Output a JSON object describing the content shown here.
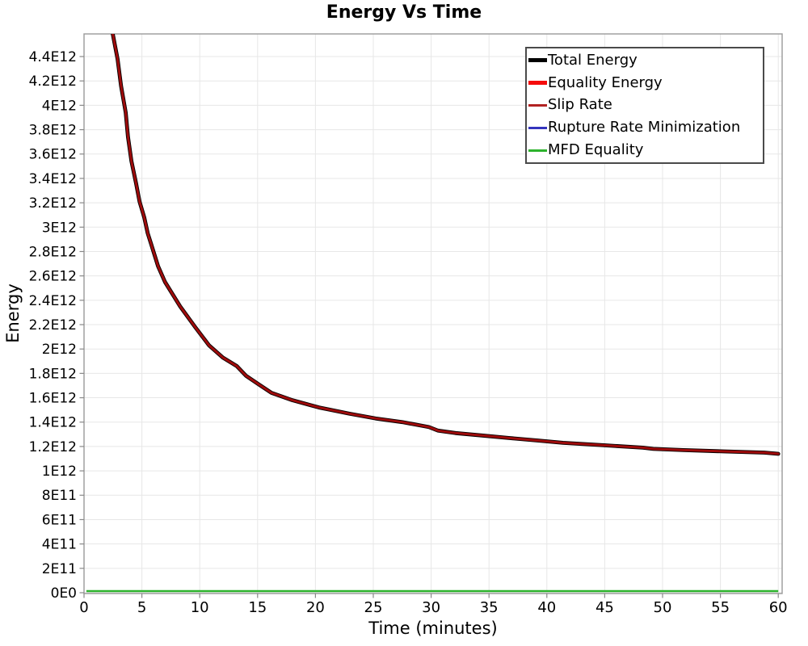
{
  "page": {
    "title": "Energy Vs Time"
  },
  "axes": {
    "x_label": "Time (minutes)",
    "y_label": "Energy"
  },
  "legend": {
    "position": "top-right",
    "items": [
      {
        "label": "Total Energy",
        "color": "#000000",
        "thickness": 5
      },
      {
        "label": "Equality Energy",
        "color": "#f50c0c",
        "thickness": 5
      },
      {
        "label": "Slip Rate",
        "color": "#b22222",
        "thickness": 3
      },
      {
        "label": "Rupture Rate Minimization",
        "color": "#3434bd",
        "thickness": 3
      },
      {
        "label": "MFD Equality",
        "color": "#2db32d",
        "thickness": 3
      }
    ]
  },
  "chart_data": {
    "type": "line",
    "title": "Energy Vs Time",
    "xlabel": "Time (minutes)",
    "ylabel": "Energy",
    "xlim": [
      0,
      60
    ],
    "ylim": [
      0,
      4600000000000.0
    ],
    "grid": true,
    "legend_position": "top-right",
    "x_ticks": {
      "values": [
        0,
        5,
        10,
        15,
        20,
        25,
        30,
        35,
        40,
        45,
        50,
        55,
        60
      ],
      "labels": [
        "0",
        "5",
        "10",
        "15",
        "20",
        "25",
        "30",
        "35",
        "40",
        "45",
        "50",
        "55",
        "60"
      ]
    },
    "y_ticks": {
      "values": [
        0,
        200000000000.0,
        400000000000.0,
        600000000000.0,
        800000000000.0,
        1000000000000.0,
        1200000000000.0,
        1400000000000.0,
        1600000000000.0,
        1800000000000.0,
        2000000000000.0,
        2200000000000.0,
        2400000000000.0,
        2600000000000.0,
        2800000000000.0,
        3000000000000.0,
        3200000000000.0,
        3400000000000.0,
        3600000000000.0,
        3800000000000.0,
        4000000000000.0,
        4200000000000.0,
        4400000000000.0
      ],
      "labels": [
        "0E0",
        "2E11",
        "4E11",
        "6E11",
        "8E11",
        "1E12",
        "1.2E12",
        "1.4E12",
        "1.6E12",
        "1.8E12",
        "2E12",
        "2.2E12",
        "2.4E12",
        "2.6E12",
        "2.8E12",
        "3E12",
        "3.2E12",
        "3.4E12",
        "3.6E12",
        "3.8E12",
        "4E12",
        "4.2E12",
        "4.4E12"
      ]
    },
    "series": [
      {
        "name": "Total Energy",
        "color": "#000000",
        "curve": "decay_curve",
        "note": "coincides with Equality Energy and Slip Rate"
      },
      {
        "name": "Equality Energy",
        "color": "#f50c0c",
        "curve": "decay_curve",
        "note": "coincides with Total Energy and Slip Rate"
      },
      {
        "name": "Slip Rate",
        "color": "#b22222",
        "curve": "decay_curve",
        "note": "drawn on top; visible dark-red curve"
      },
      {
        "name": "Rupture Rate Minimization",
        "color": "#3434bd",
        "curve": "zero_line",
        "note": "flat at ~0, hidden under MFD Equality"
      },
      {
        "name": "MFD Equality",
        "color": "#2db32d",
        "curve": "zero_line",
        "note": "visible green line at ~0"
      }
    ],
    "decay_curve": {
      "x": [
        2.35,
        2.9,
        3.2,
        3.6,
        3.8,
        4.1,
        4.5,
        4.8,
        5.2,
        5.5,
        5.8,
        6.4,
        7.0,
        8.3,
        9.6,
        10.8,
        12.0,
        13.2,
        14.0,
        15.1,
        16.2,
        18.0,
        20.3,
        22.9,
        25.2,
        27.5,
        29.8,
        30.6,
        32.1,
        34.4,
        36.7,
        39.1,
        41.4,
        44.9,
        48.3,
        49.2,
        51.8,
        55.3,
        58.8,
        60.0
      ],
      "y": [
        4650000000000.0,
        4380000000000.0,
        4160000000000.0,
        3940000000000.0,
        3740000000000.0,
        3540000000000.0,
        3360000000000.0,
        3210000000000.0,
        3080000000000.0,
        2950000000000.0,
        2860000000000.0,
        2680000000000.0,
        2550000000000.0,
        2350000000000.0,
        2180000000000.0,
        2030000000000.0,
        1930000000000.0,
        1860000000000.0,
        1780000000000.0,
        1710000000000.0,
        1640000000000.0,
        1580000000000.0,
        1520000000000.0,
        1470000000000.0,
        1430000000000.0,
        1400000000000.0,
        1360000000000.0,
        1330000000000.0,
        1310000000000.0,
        1290000000000.0,
        1270000000000.0,
        1250000000000.0,
        1230000000000.0,
        1210000000000.0,
        1190000000000.0,
        1180000000000.0,
        1170000000000.0,
        1160000000000.0,
        1150000000000.0,
        1140000000000.0
      ],
      "visible_color": "#9e0b0b"
    },
    "zero_line": {
      "x": [
        0.2,
        60.0
      ],
      "y": [
        10000000000.0,
        10000000000.0
      ]
    }
  }
}
